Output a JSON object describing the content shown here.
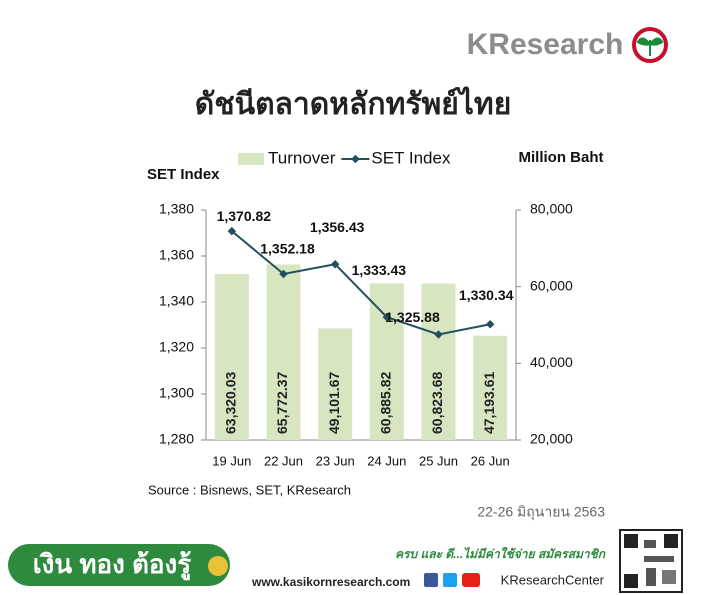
{
  "brand": "KResearch",
  "chart_data": {
    "type": "bar",
    "title": "ดัชนีตลาดหลักทรัพย์ไทย",
    "categories": [
      "19 Jun",
      "22 Jun",
      "23 Jun",
      "24 Jun",
      "25 Jun",
      "26 Jun"
    ],
    "series": [
      {
        "name": "Turnover",
        "type": "bar",
        "color": "#d7e6c0",
        "axis": "y2",
        "values": [
          63320.03,
          65772.37,
          49101.67,
          60885.82,
          60823.68,
          47193.61
        ],
        "value_labels": [
          "63,320.03",
          "65,772.37",
          "49,101.67",
          "60,885.82",
          "60,823.68",
          "47,193.61"
        ]
      },
      {
        "name": "SET Index",
        "type": "line",
        "color": "#23505e",
        "values": [
          1370.82,
          1352.18,
          1356.43,
          1333.43,
          1325.88,
          1330.34
        ],
        "value_labels": [
          "1,370.82",
          "1,352.18",
          "1,356.43",
          "1,333.43",
          "1,325.88",
          "1,330.34"
        ]
      }
    ],
    "ylabel": "SET Index",
    "y2label": "Million Baht",
    "ylim": [
      1280,
      1380
    ],
    "yticks": [
      {
        "value": 1280,
        "label": "1,280"
      },
      {
        "value": 1300,
        "label": "1,300"
      },
      {
        "value": 1320,
        "label": "1,320"
      },
      {
        "value": 1340,
        "label": "1,340"
      },
      {
        "value": 1360,
        "label": "1,360"
      },
      {
        "value": 1380,
        "label": "1,380"
      }
    ],
    "y2lim": [
      20000,
      80000
    ],
    "y2ticks": [
      {
        "value": 20000,
        "label": "20,000"
      },
      {
        "value": 40000,
        "label": "40,000"
      },
      {
        "value": 60000,
        "label": "60,000"
      },
      {
        "value": 80000,
        "label": "80,000"
      }
    ],
    "source": "Source : Bisnews, SET, KResearch"
  },
  "date": "22-26  มิถุนายน 2563",
  "footer": {
    "slogan": "เงิน ทอง ต้องรู้",
    "website": "www.kasikornresearch.com",
    "tagline": "ครบ และ ดี...ไม่มีค่าใช้จ่าย สมัครสมาชิก",
    "social": "KResearchCenter"
  }
}
